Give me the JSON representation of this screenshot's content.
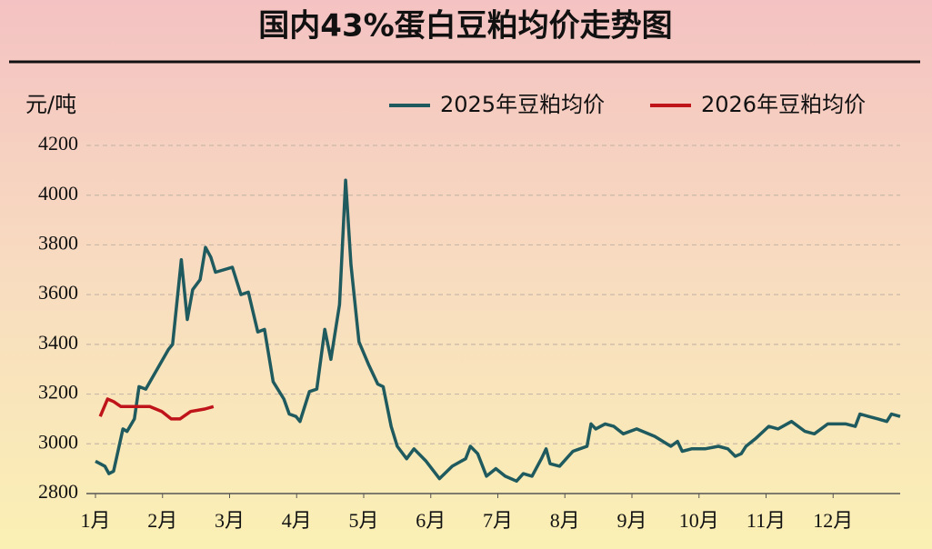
{
  "chart_data": {
    "type": "line",
    "title": "国内43%蛋白豆粕均价走势图",
    "y_label": "元/吨",
    "xlim": [
      1,
      13
    ],
    "xticks": [
      {
        "value": 1,
        "label": "1月"
      },
      {
        "value": 2,
        "label": "2月"
      },
      {
        "value": 3,
        "label": "3月"
      },
      {
        "value": 4,
        "label": "4月"
      },
      {
        "value": 5,
        "label": "5月"
      },
      {
        "value": 6,
        "label": "6月"
      },
      {
        "value": 7,
        "label": "7月"
      },
      {
        "value": 8,
        "label": "8月"
      },
      {
        "value": 9,
        "label": "9月"
      },
      {
        "value": 10,
        "label": "10月"
      },
      {
        "value": 11,
        "label": "11月"
      },
      {
        "value": 12,
        "label": "12月"
      }
    ],
    "ylim": [
      2800,
      4200
    ],
    "yticks": [
      2800,
      3000,
      3200,
      3400,
      3600,
      3800,
      4000,
      4200
    ],
    "grid": true,
    "legend": "top-right",
    "series": [
      {
        "name": "2025年豆粕均价",
        "color": "#1f5a5e",
        "x": [
          1.0,
          1.14,
          1.2,
          1.27,
          1.41,
          1.47,
          1.58,
          1.65,
          1.75,
          2.09,
          2.15,
          2.28,
          2.37,
          2.45,
          2.56,
          2.64,
          2.72,
          2.79,
          3.04,
          3.17,
          3.28,
          3.42,
          3.52,
          3.65,
          3.81,
          3.89,
          3.99,
          4.05,
          4.19,
          4.3,
          4.42,
          4.51,
          4.64,
          4.73,
          4.81,
          4.93,
          5.07,
          5.21,
          5.29,
          5.41,
          5.5,
          5.64,
          5.75,
          5.93,
          6.13,
          6.32,
          6.52,
          6.59,
          6.7,
          6.83,
          6.97,
          7.11,
          7.28,
          7.38,
          7.51,
          7.65,
          7.72,
          7.78,
          7.92,
          8.12,
          8.33,
          8.39,
          8.46,
          8.6,
          8.73,
          8.87,
          9.07,
          9.34,
          9.58,
          9.68,
          9.75,
          9.89,
          10.09,
          10.29,
          10.43,
          10.54,
          10.63,
          10.7,
          10.84,
          11.04,
          11.18,
          11.38,
          11.58,
          11.72,
          11.92,
          12.19,
          12.33,
          12.4,
          12.53,
          12.67,
          12.8,
          12.87,
          13.0
        ],
        "values": [
          2930,
          2910,
          2880,
          2890,
          3060,
          3050,
          3100,
          3230,
          3220,
          3380,
          3400,
          3740,
          3500,
          3620,
          3660,
          3790,
          3750,
          3690,
          3710,
          3600,
          3610,
          3450,
          3460,
          3250,
          3180,
          3120,
          3110,
          3090,
          3210,
          3220,
          3460,
          3340,
          3560,
          4060,
          3720,
          3410,
          3320,
          3240,
          3230,
          3070,
          2990,
          2940,
          2980,
          2930,
          2860,
          2910,
          2940,
          2990,
          2960,
          2870,
          2900,
          2870,
          2850,
          2880,
          2870,
          2940,
          2980,
          2920,
          2910,
          2970,
          2990,
          3080,
          3060,
          3080,
          3070,
          3040,
          3060,
          3030,
          2990,
          3010,
          2970,
          2980,
          2980,
          2990,
          2980,
          2950,
          2960,
          2990,
          3020,
          3070,
          3060,
          3090,
          3050,
          3040,
          3080,
          3080,
          3070,
          3120,
          3110,
          3100,
          3090,
          3120,
          3110
        ]
      },
      {
        "name": "2026年豆粕均价",
        "color": "#c0141b",
        "x": [
          1.07,
          1.18,
          1.27,
          1.38,
          1.54,
          1.81,
          1.99,
          2.13,
          2.26,
          2.42,
          2.63,
          2.76
        ],
        "values": [
          3110,
          3180,
          3170,
          3150,
          3150,
          3150,
          3130,
          3100,
          3100,
          3130,
          3140,
          3150
        ]
      }
    ]
  }
}
